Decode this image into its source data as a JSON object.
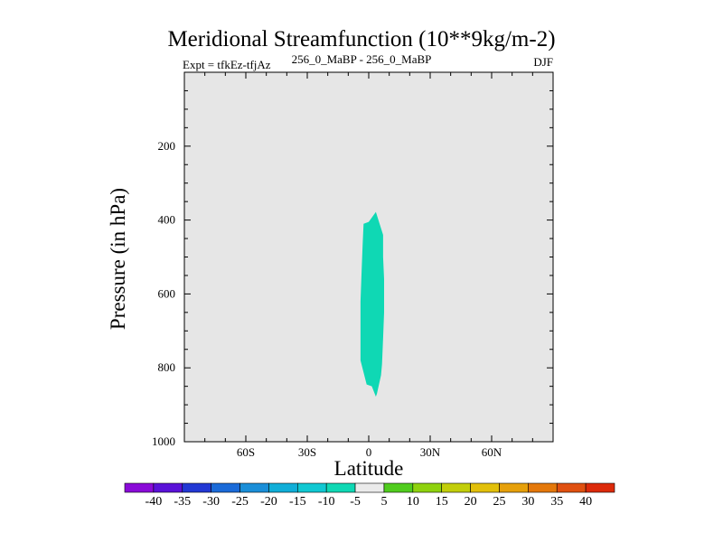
{
  "chart_data": {
    "type": "heatmap",
    "title": "Meridional Streamfunction (10**9kg/m-2)",
    "left_subtitle": "Expt = tfkEz-tfjAz",
    "center_subtitle": "256_0_MaBP - 256_0_MaBP",
    "right_subtitle": "DJF",
    "xlabel": "Latitude",
    "ylabel": "Pressure (in hPa)",
    "xlim": [
      -90,
      90
    ],
    "ylim": [
      1000,
      0
    ],
    "x_ticks": [
      {
        "value": -60,
        "label": "60S"
      },
      {
        "value": -30,
        "label": "30S"
      },
      {
        "value": 0,
        "label": "0"
      },
      {
        "value": 30,
        "label": "30N"
      },
      {
        "value": 60,
        "label": "60N"
      }
    ],
    "y_ticks": [
      {
        "value": 200,
        "label": "200"
      },
      {
        "value": 400,
        "label": "400"
      },
      {
        "value": 600,
        "label": "600"
      },
      {
        "value": 800,
        "label": "800"
      },
      {
        "value": 1000,
        "label": "1000"
      }
    ],
    "background_color": "#e6e6e6",
    "filled_region": {
      "interval": [
        -10,
        -5
      ],
      "color": "#0fd8b4",
      "outline": [
        [
          -2.5,
          410
        ],
        [
          0,
          405
        ],
        [
          3.5,
          378
        ],
        [
          7,
          440
        ],
        [
          7,
          500
        ],
        [
          7.5,
          560
        ],
        [
          7.5,
          650
        ],
        [
          7,
          720
        ],
        [
          6.5,
          790
        ],
        [
          6,
          820
        ],
        [
          4,
          870
        ],
        [
          3.5,
          878
        ],
        [
          1.5,
          850
        ],
        [
          -1,
          845
        ],
        [
          -4,
          780
        ],
        [
          -4,
          700
        ],
        [
          -4,
          620
        ],
        [
          -3.5,
          540
        ],
        [
          -3,
          470
        ]
      ]
    },
    "colorbar": {
      "labels": [
        "-40",
        "-35",
        "-30",
        "-25",
        "-20",
        "-15",
        "-10",
        "-5",
        "5",
        "10",
        "15",
        "20",
        "25",
        "30",
        "35",
        "40"
      ],
      "colors": [
        "#8a0ad8",
        "#5a12d8",
        "#2238d4",
        "#1a6ad8",
        "#1a8ed8",
        "#10aed8",
        "#10c8d2",
        "#0fd8b4",
        "#ebebeb",
        "#50cc1e",
        "#8ed20e",
        "#c2ce0a",
        "#e2c00a",
        "#e6a00a",
        "#e4780a",
        "#e05010",
        "#dc2a0a"
      ]
    }
  }
}
